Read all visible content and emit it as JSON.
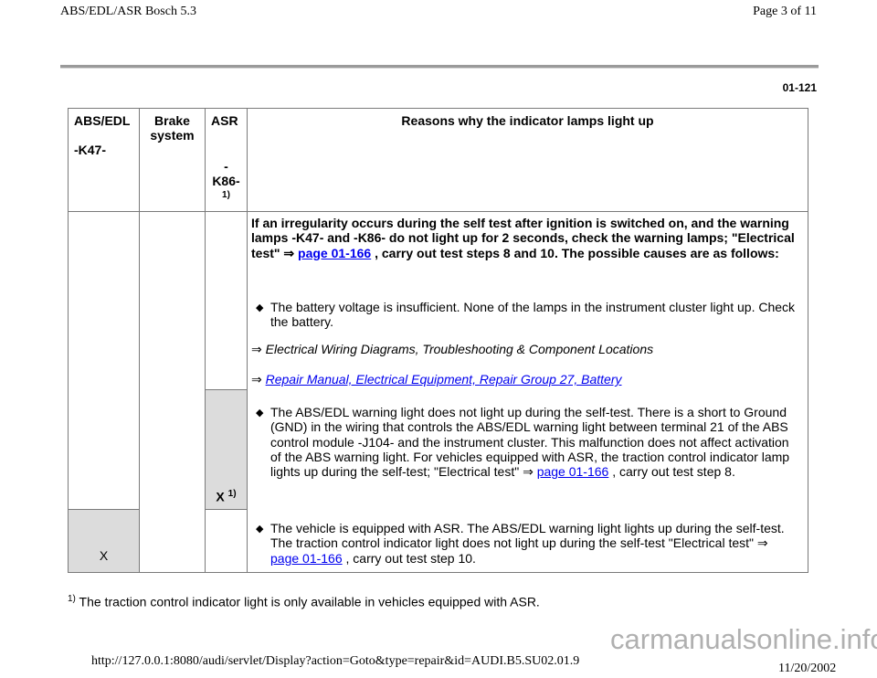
{
  "header": {
    "title": "ABS/EDL/ASR Bosch 5.3",
    "page": "Page 3 of 11"
  },
  "page_number": "01-121",
  "table": {
    "headers": {
      "abs_edl": "ABS/EDL",
      "abs_edl_code": "-K47-",
      "brake": "Brake system",
      "asr": "ASR",
      "asr_dash": "-",
      "asr_code": "K86-",
      "asr_note": "1)",
      "reasons": "Reasons why the indicator lamps light up"
    },
    "intro": {
      "part1": "If an irregularity occurs during the self test after ignition is switched on, and the warning lamps -K47- and -K86- do not light up for 2 seconds, check the warning lamps; \"Electrical test\" ⇒ ",
      "link": "page 01-166",
      "part2": " , carry out test steps 8 and 10. The possible causes are as follows:"
    },
    "bullet1": "The battery voltage is insufficient. None of the lamps in the instrument cluster light up. Check the battery.",
    "ref1": {
      "arrow": "⇒",
      "text": "Electrical Wiring Diagrams, Troubleshooting & Component Locations"
    },
    "ref2": {
      "arrow": "⇒",
      "link": "Repair Manual, Electrical Equipment, Repair Group 27, Battery"
    },
    "bullet2": {
      "part1": "The ABS/EDL warning light does not light up during the self-test. There is a short to Ground (GND) in the wiring that controls the ABS/EDL warning light between terminal 21 of the ABS control module -J104- and the instrument cluster. This malfunction does not affect activation of the ABS warning light. For vehicles equipped with ASR, the traction control indicator lamp lights up during the self-test; \"Electrical test\" ⇒ ",
      "link": "page 01-166",
      "part2": " , carry out test step 8."
    },
    "bullet3": {
      "part1": "The vehicle is equipped with ASR. The ABS/EDL warning light lights up during the self-test. The traction control indicator light does not light up during the self-test \"Electrical test\" ⇒ ",
      "link": "page 01-166",
      "part2": " , carry out test step 10."
    },
    "mark_asr": "X",
    "mark_asr_note": "1)",
    "mark_abs": "X",
    "bullet_icon": "◆"
  },
  "footnote": {
    "mark": "1)",
    "text": "The traction control indicator light is only available in vehicles equipped with ASR."
  },
  "footer": {
    "url": "http://127.0.0.1:8080/audi/servlet/Display?action=Goto&type=repair&id=AUDI.B5.SU02.01.9",
    "date": "11/20/2002",
    "watermark": "carmanualsonline.info"
  }
}
